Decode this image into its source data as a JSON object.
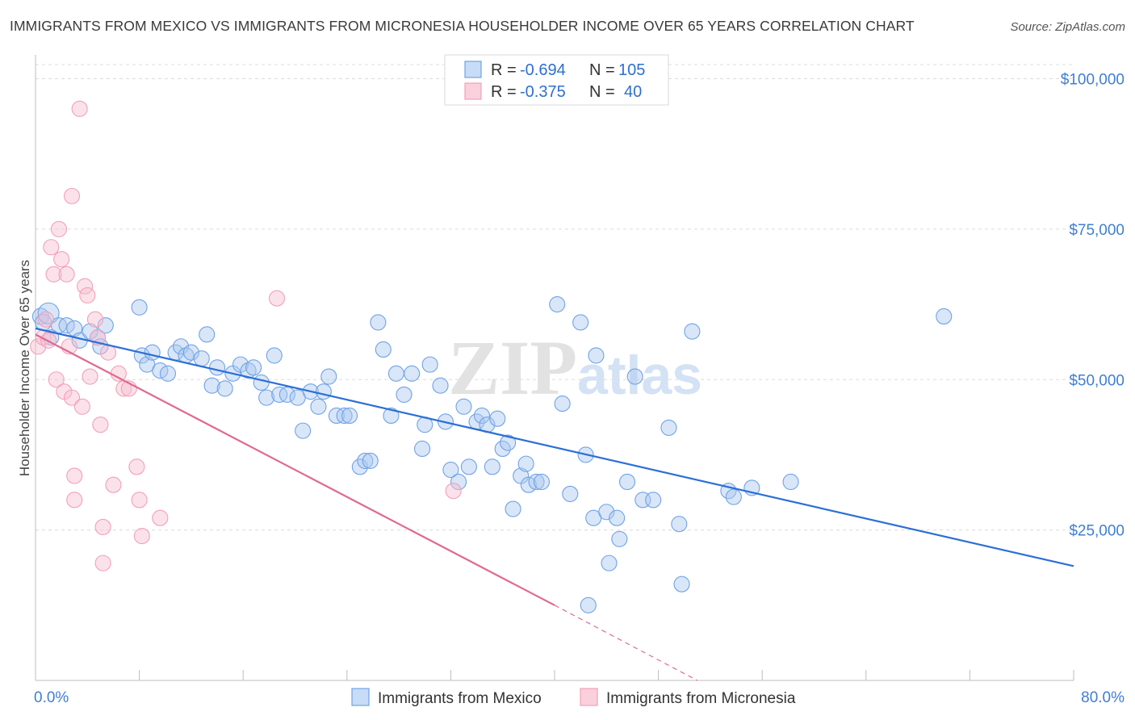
{
  "title": "IMMIGRANTS FROM MEXICO VS IMMIGRANTS FROM MICRONESIA HOUSEHOLDER INCOME OVER 65 YEARS CORRELATION CHART",
  "source": "Source: ZipAtlas.com",
  "watermark": {
    "zip": "ZIP",
    "atlas": "atlas"
  },
  "legend": {
    "r_label": "R =",
    "n_label": "N =",
    "rows": [
      {
        "r": "-0.694",
        "n": "105"
      },
      {
        "r": "-0.375",
        "n": "40"
      }
    ]
  },
  "chart_data": {
    "type": "scatter",
    "ylabel": "Householder Income Over 65 years",
    "xlim": [
      0,
      80
    ],
    "ylim": [
      0,
      105000
    ],
    "x_tick_labels": [
      "0.0%",
      "80.0%"
    ],
    "y_ticks": [
      {
        "value": 25000,
        "label": "$25,000"
      },
      {
        "value": 50000,
        "label": "$50,000"
      },
      {
        "value": 75000,
        "label": "$75,000"
      },
      {
        "value": 100000,
        "label": "$100,000"
      }
    ],
    "grid": true,
    "series": [
      {
        "name": "Immigrants from Mexico",
        "color": "#6fa3e6",
        "line_color": "#2b6fd6",
        "trend": {
          "x1": 0,
          "y1": 58500,
          "x2": 80,
          "y2": 19000,
          "dashed_from": null
        },
        "points": [
          [
            0.4,
            60500
          ],
          [
            0.6,
            59500
          ],
          [
            1.0,
            61000
          ],
          [
            1.2,
            57000
          ],
          [
            1.8,
            59000
          ],
          [
            2.4,
            59000
          ],
          [
            3.0,
            58500
          ],
          [
            3.4,
            56500
          ],
          [
            4.2,
            58000
          ],
          [
            4.8,
            57000
          ],
          [
            5.0,
            55500
          ],
          [
            5.4,
            59000
          ],
          [
            8.0,
            62000
          ],
          [
            8.2,
            54000
          ],
          [
            8.6,
            52500
          ],
          [
            9.0,
            54500
          ],
          [
            9.6,
            51500
          ],
          [
            10.2,
            51000
          ],
          [
            10.8,
            54500
          ],
          [
            11.2,
            55500
          ],
          [
            11.6,
            54000
          ],
          [
            12.0,
            54500
          ],
          [
            12.8,
            53500
          ],
          [
            13.2,
            57500
          ],
          [
            13.6,
            49000
          ],
          [
            14.0,
            52000
          ],
          [
            14.6,
            48500
          ],
          [
            15.2,
            51000
          ],
          [
            15.8,
            52500
          ],
          [
            16.4,
            51500
          ],
          [
            16.8,
            52000
          ],
          [
            17.4,
            49500
          ],
          [
            17.8,
            47000
          ],
          [
            18.4,
            54000
          ],
          [
            18.8,
            47500
          ],
          [
            19.4,
            47500
          ],
          [
            20.2,
            47000
          ],
          [
            20.6,
            41500
          ],
          [
            21.2,
            48000
          ],
          [
            21.8,
            45500
          ],
          [
            22.2,
            48000
          ],
          [
            22.6,
            50500
          ],
          [
            23.2,
            44000
          ],
          [
            23.8,
            44000
          ],
          [
            24.2,
            44000
          ],
          [
            25.0,
            35500
          ],
          [
            25.4,
            36500
          ],
          [
            25.8,
            36500
          ],
          [
            26.4,
            59500
          ],
          [
            26.8,
            55000
          ],
          [
            27.4,
            44000
          ],
          [
            27.8,
            51000
          ],
          [
            28.4,
            47500
          ],
          [
            29.0,
            51000
          ],
          [
            29.8,
            38500
          ],
          [
            30.0,
            42500
          ],
          [
            30.4,
            52500
          ],
          [
            31.2,
            49000
          ],
          [
            31.6,
            43000
          ],
          [
            32.0,
            35000
          ],
          [
            32.6,
            33000
          ],
          [
            33.0,
            45500
          ],
          [
            33.4,
            35500
          ],
          [
            34.0,
            43000
          ],
          [
            34.4,
            44000
          ],
          [
            34.8,
            42500
          ],
          [
            35.2,
            35500
          ],
          [
            35.6,
            43500
          ],
          [
            36.0,
            38500
          ],
          [
            36.4,
            39500
          ],
          [
            36.8,
            28500
          ],
          [
            37.4,
            34000
          ],
          [
            37.8,
            36000
          ],
          [
            38.0,
            32500
          ],
          [
            38.6,
            33000
          ],
          [
            39.0,
            33000
          ],
          [
            40.2,
            62500
          ],
          [
            40.6,
            46000
          ],
          [
            41.2,
            31000
          ],
          [
            42.0,
            59500
          ],
          [
            42.4,
            37500
          ],
          [
            43.0,
            27000
          ],
          [
            43.2,
            54000
          ],
          [
            44.0,
            28000
          ],
          [
            44.2,
            19500
          ],
          [
            44.8,
            27000
          ],
          [
            45.0,
            23500
          ],
          [
            45.6,
            33000
          ],
          [
            46.2,
            50500
          ],
          [
            46.8,
            30000
          ],
          [
            47.6,
            30000
          ],
          [
            48.8,
            42000
          ],
          [
            49.6,
            26000
          ],
          [
            49.8,
            16000
          ],
          [
            50.6,
            58000
          ],
          [
            53.4,
            31500
          ],
          [
            53.8,
            30500
          ],
          [
            55.2,
            32000
          ],
          [
            58.2,
            33000
          ],
          [
            70.0,
            60500
          ],
          [
            42.6,
            12500
          ]
        ]
      },
      {
        "name": "Immigrants from Micronesia",
        "color": "#f2a0b8",
        "line_color": "#e0698f",
        "trend": {
          "x1": 0,
          "y1": 57500,
          "x2": 40,
          "y2": 12500,
          "dashed_from": 40,
          "dash_end_x": 51,
          "dash_end_y": 0
        },
        "points": [
          [
            0.2,
            55500
          ],
          [
            0.6,
            57000
          ],
          [
            0.8,
            60000
          ],
          [
            1.0,
            56500
          ],
          [
            1.2,
            72000
          ],
          [
            1.4,
            67500
          ],
          [
            1.6,
            50000
          ],
          [
            1.8,
            75000
          ],
          [
            2.0,
            70000
          ],
          [
            2.2,
            48000
          ],
          [
            2.4,
            67500
          ],
          [
            2.6,
            55500
          ],
          [
            2.8,
            80500
          ],
          [
            2.8,
            47000
          ],
          [
            3.0,
            34000
          ],
          [
            3.0,
            30000
          ],
          [
            3.4,
            95000
          ],
          [
            3.6,
            45500
          ],
          [
            3.8,
            65500
          ],
          [
            4.0,
            64000
          ],
          [
            4.2,
            50500
          ],
          [
            4.6,
            60000
          ],
          [
            4.8,
            57000
          ],
          [
            5.0,
            42500
          ],
          [
            5.2,
            25500
          ],
          [
            5.2,
            19500
          ],
          [
            5.6,
            54500
          ],
          [
            6.0,
            32500
          ],
          [
            6.4,
            51000
          ],
          [
            6.8,
            48500
          ],
          [
            7.2,
            48500
          ],
          [
            7.8,
            35500
          ],
          [
            8.0,
            30000
          ],
          [
            8.2,
            24000
          ],
          [
            9.6,
            27000
          ],
          [
            18.6,
            63500
          ],
          [
            32.2,
            31500
          ]
        ]
      }
    ]
  }
}
